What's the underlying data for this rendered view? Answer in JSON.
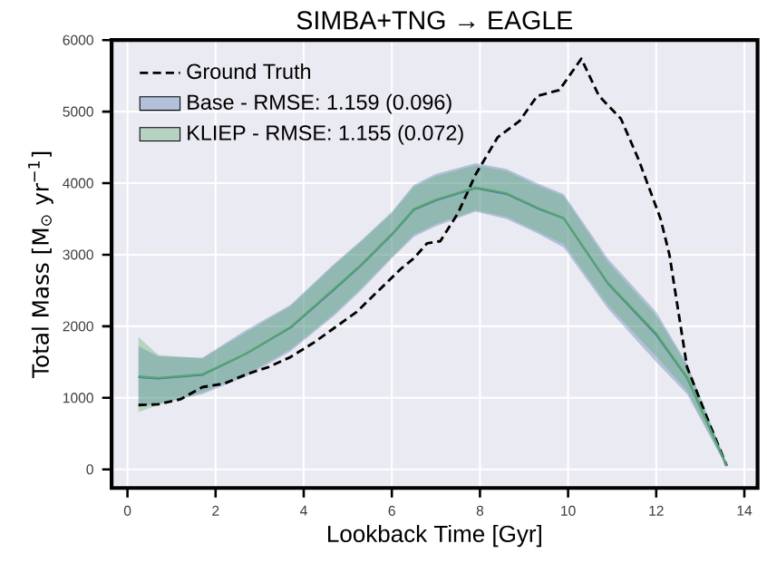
{
  "chart_data": {
    "type": "line",
    "title": "SIMBA+TNG → EAGLE",
    "xlabel": "Lookback Time [Gyr]",
    "ylabel": "Total Mass [M$_{⊙}$ yr$^{−1}$]",
    "xlim": [
      -0.36,
      14.3
    ],
    "ylim": [
      -260,
      6000
    ],
    "xticks": [
      0,
      2,
      4,
      6,
      8,
      10,
      12,
      14
    ],
    "yticks": [
      0,
      1000,
      2000,
      3000,
      4000,
      5000,
      6000
    ],
    "grid": true,
    "legend": "top left",
    "series": [
      {
        "name": "Ground Truth",
        "color": "#000000",
        "line_style": "dashed",
        "x": [
          0.25,
          0.7,
          1.2,
          1.7,
          2.2,
          2.7,
          3.2,
          3.7,
          4.2,
          4.7,
          5.2,
          5.7,
          6.2,
          6.5,
          6.8,
          7.1,
          7.5,
          7.9,
          8.4,
          8.9,
          9.3,
          9.8,
          10.3,
          10.7,
          11.2,
          11.6,
          12.1,
          12.3,
          12.7,
          13.2,
          13.6
        ],
        "values": [
          900,
          910,
          980,
          1150,
          1200,
          1330,
          1430,
          1570,
          1760,
          1980,
          2200,
          2500,
          2800,
          2950,
          3160,
          3190,
          3580,
          4120,
          4640,
          4870,
          5220,
          5300,
          5740,
          5220,
          4900,
          4330,
          3500,
          3000,
          1430,
          650,
          50
        ]
      },
      {
        "name": "Base   - RMSE: 1.159 (0.096)",
        "color": "#4c72b0",
        "x": [
          0.25,
          0.7,
          1.7,
          2.7,
          3.7,
          4.7,
          5.3,
          6.0,
          6.5,
          7.0,
          7.9,
          8.6,
          9.3,
          9.9,
          10.9,
          12.0,
          12.7,
          13.6
        ],
        "values": [
          1290,
          1270,
          1320,
          1620,
          1980,
          2520,
          2850,
          3280,
          3630,
          3760,
          3930,
          3850,
          3650,
          3510,
          2600,
          1880,
          1280,
          50
        ],
        "lower": [
          880,
          920,
          1050,
          1300,
          1650,
          2150,
          2500,
          2950,
          3250,
          3400,
          3600,
          3500,
          3300,
          3100,
          2250,
          1500,
          1050,
          30
        ],
        "upper": [
          1720,
          1580,
          1560,
          1950,
          2300,
          2880,
          3200,
          3600,
          3980,
          4130,
          4280,
          4200,
          4000,
          3850,
          2950,
          2200,
          1480,
          80
        ]
      },
      {
        "name": "KLIEP - RMSE: 1.155 (0.072)",
        "color": "#55a868",
        "x": [
          0.25,
          0.7,
          1.7,
          2.7,
          3.7,
          4.7,
          5.3,
          6.0,
          6.5,
          7.0,
          7.9,
          8.6,
          9.3,
          9.9,
          10.9,
          12.0,
          12.7,
          13.6
        ],
        "values": [
          1300,
          1280,
          1330,
          1620,
          1990,
          2530,
          2860,
          3290,
          3640,
          3770,
          3940,
          3860,
          3660,
          3510,
          2610,
          1900,
          1290,
          50
        ],
        "lower": [
          800,
          900,
          1080,
          1330,
          1680,
          2180,
          2530,
          2970,
          3280,
          3430,
          3620,
          3530,
          3330,
          3150,
          2300,
          1580,
          1100,
          30
        ],
        "upper": [
          1850,
          1600,
          1550,
          1920,
          2280,
          2860,
          3180,
          3580,
          3950,
          4100,
          4250,
          4170,
          3970,
          3820,
          2900,
          2150,
          1450,
          80
        ]
      }
    ]
  }
}
